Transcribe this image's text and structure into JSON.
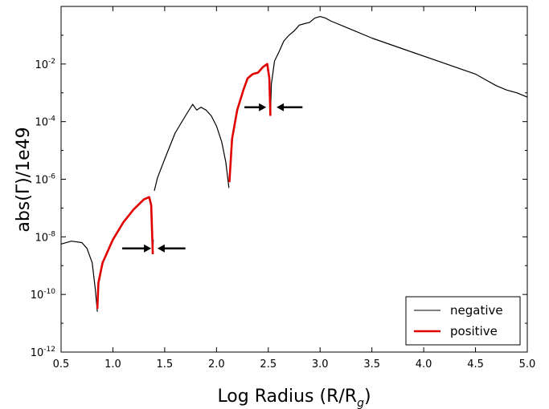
{
  "chart_data": {
    "type": "line",
    "xlabel": "Log Radius (R/R",
    "xlabel_sub": "g",
    "xlabel_close": ")",
    "ylabel": "abs(Γ)/1e49",
    "xlim": [
      0.5,
      5.0
    ],
    "ylim": [
      1e-12,
      1.0
    ],
    "yscale": "log",
    "x_ticks": [
      "0.5",
      "1.0",
      "1.5",
      "2.0",
      "2.5",
      "3.0",
      "3.5",
      "4.0",
      "4.5",
      "5.0"
    ],
    "y_ticks": [
      {
        "base": "10",
        "exp": "-12",
        "value": -12
      },
      {
        "base": "10",
        "exp": "-10",
        "value": -10
      },
      {
        "base": "10",
        "exp": "-8",
        "value": -8
      },
      {
        "base": "10",
        "exp": "-6",
        "value": -6
      },
      {
        "base": "10",
        "exp": "-4",
        "value": -4
      },
      {
        "base": "10",
        "exp": "-2",
        "value": -2
      }
    ],
    "legend_position": "lower-right",
    "colors": {
      "negative": "#000000",
      "positive": "#e00000"
    },
    "series": [
      {
        "name": "negative",
        "color": "#000000",
        "segments": [
          [
            [
              0.5,
              -8.25
            ],
            [
              0.6,
              -8.15
            ],
            [
              0.7,
              -8.2
            ],
            [
              0.75,
              -8.4
            ],
            [
              0.8,
              -8.9
            ],
            [
              0.83,
              -9.8
            ],
            [
              0.85,
              -10.6
            ]
          ],
          [
            [
              1.385,
              -8.6
            ],
            [
              1.39,
              -8.1
            ]
          ],
          [
            [
              1.4,
              -6.4
            ],
            [
              1.43,
              -5.95
            ],
            [
              1.5,
              -5.3
            ],
            [
              1.6,
              -4.4
            ],
            [
              1.7,
              -3.8
            ],
            [
              1.77,
              -3.4
            ],
            [
              1.81,
              -3.6
            ],
            [
              1.85,
              -3.5
            ],
            [
              1.9,
              -3.6
            ],
            [
              1.95,
              -3.8
            ],
            [
              2.0,
              -4.15
            ],
            [
              2.05,
              -4.7
            ],
            [
              2.09,
              -5.4
            ],
            [
              2.12,
              -6.3
            ]
          ],
          [
            [
              2.52,
              -3.8
            ],
            [
              2.53,
              -2.7
            ],
            [
              2.56,
              -1.9
            ],
            [
              2.6,
              -1.6
            ],
            [
              2.65,
              -1.2
            ],
            [
              2.7,
              -1.0
            ],
            [
              2.75,
              -0.85
            ],
            [
              2.8,
              -0.65
            ],
            [
              2.85,
              -0.6
            ],
            [
              2.9,
              -0.55
            ],
            [
              2.95,
              -0.4
            ],
            [
              3.0,
              -0.35
            ],
            [
              3.05,
              -0.4
            ],
            [
              3.1,
              -0.5
            ],
            [
              3.3,
              -0.8
            ],
            [
              3.5,
              -1.1
            ],
            [
              3.7,
              -1.35
            ],
            [
              3.9,
              -1.6
            ],
            [
              4.1,
              -1.85
            ],
            [
              4.3,
              -2.1
            ],
            [
              4.5,
              -2.35
            ],
            [
              4.6,
              -2.55
            ],
            [
              4.7,
              -2.75
            ],
            [
              4.8,
              -2.9
            ],
            [
              4.9,
              -3.0
            ],
            [
              5.0,
              -3.15
            ]
          ]
        ]
      },
      {
        "name": "positive",
        "color": "#e00000",
        "segments": [
          [
            [
              0.85,
              -10.5
            ],
            [
              0.86,
              -9.6
            ],
            [
              0.9,
              -8.9
            ],
            [
              1.0,
              -8.1
            ],
            [
              1.1,
              -7.5
            ],
            [
              1.2,
              -7.05
            ],
            [
              1.3,
              -6.7
            ],
            [
              1.35,
              -6.62
            ],
            [
              1.37,
              -6.9
            ],
            [
              1.385,
              -8.6
            ]
          ],
          [
            [
              2.125,
              -6.1
            ],
            [
              2.15,
              -4.6
            ],
            [
              2.2,
              -3.6
            ],
            [
              2.26,
              -2.9
            ],
            [
              2.3,
              -2.5
            ],
            [
              2.35,
              -2.35
            ],
            [
              2.4,
              -2.3
            ],
            [
              2.45,
              -2.1
            ],
            [
              2.49,
              -2.0
            ],
            [
              2.51,
              -2.5
            ],
            [
              2.52,
              -3.8
            ]
          ]
        ]
      }
    ],
    "annotations": [
      {
        "type": "arrows-pair",
        "y": -8.4,
        "left_from": 1.09,
        "left_to": 1.37,
        "right_from": 1.7,
        "right_to": 1.43
      },
      {
        "type": "arrows-pair",
        "y": -3.5,
        "left_from": 2.27,
        "left_to": 2.48,
        "right_from": 2.83,
        "right_to": 2.58
      }
    ]
  }
}
